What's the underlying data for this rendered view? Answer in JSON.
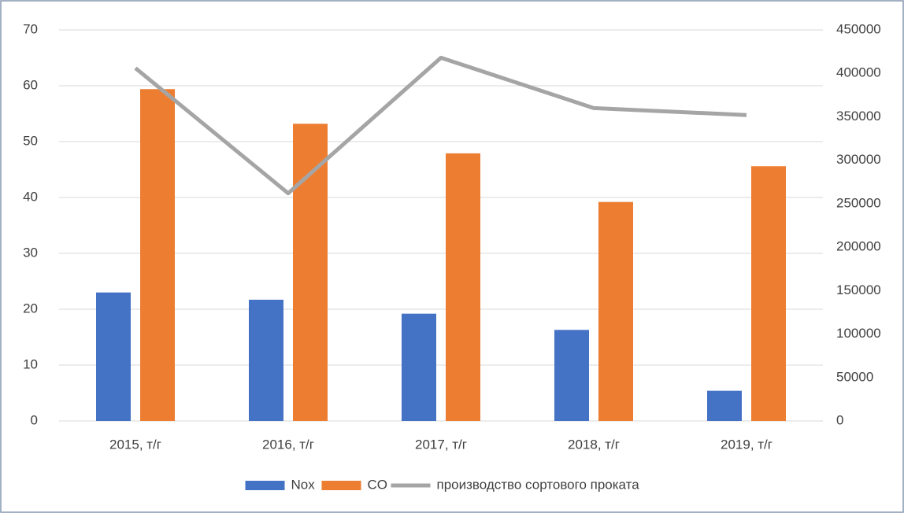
{
  "chart_data": {
    "type": "bar",
    "categories": [
      "2015, т/г",
      "2016, т/г",
      "2017, т/г",
      "2018, т/г",
      "2019, т/г"
    ],
    "series": [
      {
        "name": "Nox",
        "color": "#4472c4",
        "values": [
          23,
          21.7,
          19.2,
          16.3,
          5.4
        ]
      },
      {
        "name": "CO",
        "color": "#ed7d31",
        "values": [
          59.4,
          53.2,
          47.9,
          39.2,
          45.6
        ]
      },
      {
        "name": "производство сортового проката",
        "color": "#a5a5a5",
        "type": "line",
        "axis": "y2",
        "values": [
          406000,
          262000,
          418000,
          360000,
          352000
        ]
      }
    ],
    "ylim": [
      0,
      70
    ],
    "yticks": [
      0,
      10,
      20,
      30,
      40,
      50,
      60,
      70
    ],
    "y2lim": [
      0,
      450000
    ],
    "y2ticks": [
      0,
      50000,
      100000,
      150000,
      200000,
      250000,
      300000,
      350000,
      400000,
      450000
    ],
    "grid": true,
    "legend": "bottom"
  }
}
